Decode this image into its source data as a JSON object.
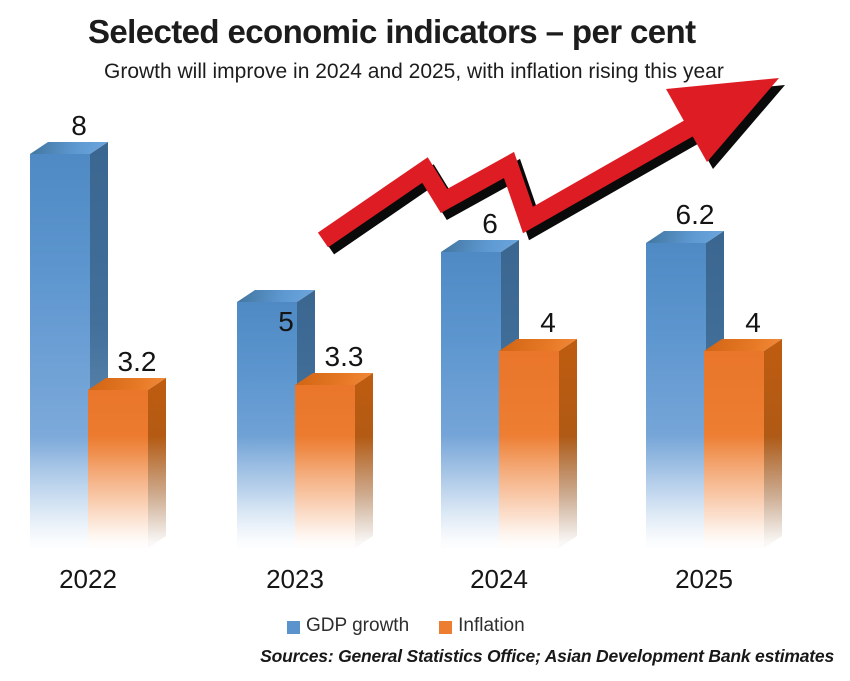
{
  "header": {
    "title": "Selected economic indicators – per cent",
    "subtitle": "Growth will improve in 2024 and 2025, with inflation rising this year"
  },
  "footer": {
    "source": "Sources: General Statistics Office; Asian Development Bank estimates"
  },
  "legend": {
    "position": "bottom",
    "items": [
      {
        "label": "GDP growth",
        "color": "#5b93cc"
      },
      {
        "label": "Inflation",
        "color": "#ed7d31"
      }
    ]
  },
  "annotation": {
    "type": "trend-arrow",
    "description": "red zigzag arrow rising to the upper right with black drop shadow",
    "color": "#de1c23",
    "shadow_color": "#0a0a0a"
  },
  "chart_data": {
    "type": "bar",
    "style": "3d-columns-with-bottom-fade",
    "title": "Selected economic indicators – per cent",
    "subtitle": "Growth will improve in 2024 and 2025, with inflation rising this year",
    "xlabel": "",
    "ylabel": "per cent",
    "ylim": [
      0,
      8.5
    ],
    "grid": false,
    "value_labels": true,
    "legend_position": "bottom",
    "categories": [
      "2022",
      "2023",
      "2024",
      "2025"
    ],
    "series": [
      {
        "name": "GDP growth",
        "values": [
          8,
          5,
          6,
          6.2
        ],
        "labels": [
          "8",
          "5",
          "6",
          "6.2"
        ],
        "label_placement": [
          "above",
          "inside",
          "above",
          "above"
        ],
        "color": "#5b93cc"
      },
      {
        "name": "Inflation",
        "values": [
          3.2,
          3.3,
          4,
          4
        ],
        "labels": [
          "3.2",
          "3.3",
          "4",
          "4"
        ],
        "label_placement": [
          "above",
          "above",
          "above",
          "above"
        ],
        "color": "#ed7d31"
      }
    ]
  }
}
